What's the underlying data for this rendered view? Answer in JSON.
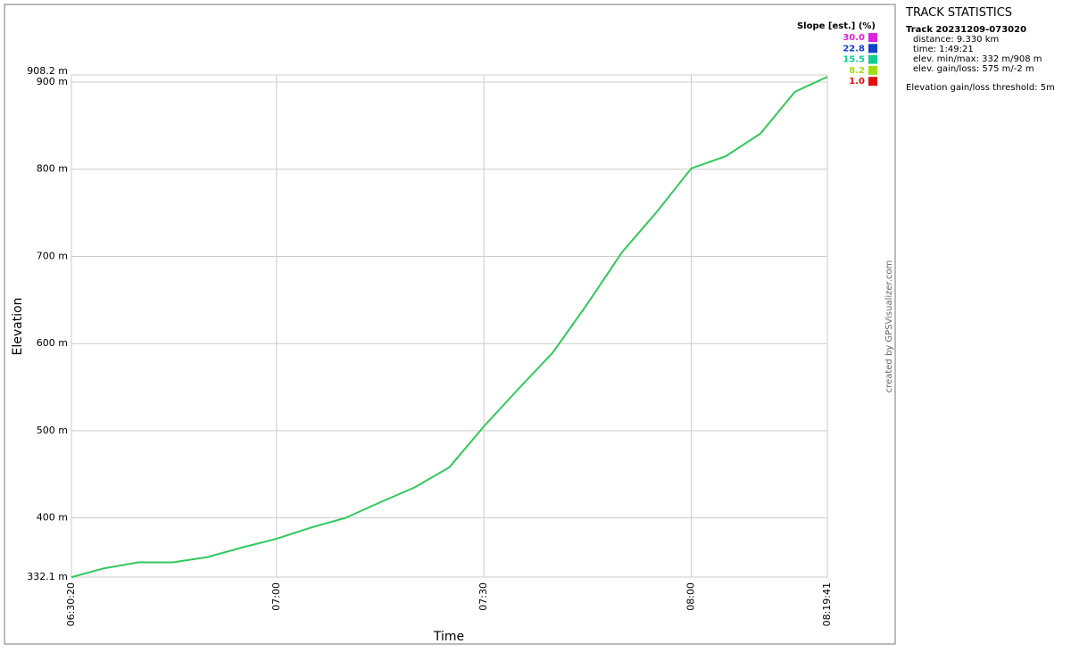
{
  "chart_data": {
    "type": "line",
    "x_label": "Time",
    "y_label": "Elevation",
    "x": [
      "06:30:20",
      "06:35",
      "06:40",
      "06:45",
      "06:50",
      "06:55",
      "07:00",
      "07:05",
      "07:10",
      "07:15",
      "07:20",
      "07:25",
      "07:30",
      "07:35",
      "07:40",
      "07:45",
      "07:50",
      "07:55",
      "08:00",
      "08:05",
      "08:10",
      "08:15",
      "08:19:41"
    ],
    "values": [
      332,
      342,
      349,
      349,
      355,
      366,
      376,
      389,
      400,
      418,
      435,
      458,
      505,
      548,
      590,
      646,
      705,
      751,
      801,
      815,
      841,
      889,
      906
    ],
    "color": "#2fc95a",
    "xlim": [
      "06:30:20",
      "08:19:41"
    ],
    "xticks": [
      "06:30:20",
      "07:00",
      "07:30",
      "08:00",
      "08:19:41"
    ],
    "ylim": [
      332.1,
      908.2
    ],
    "yticks": [
      {
        "value": 332.1,
        "label": "332.1 m"
      },
      {
        "value": 400,
        "label": "400 m"
      },
      {
        "value": 500,
        "label": "500 m"
      },
      {
        "value": 600,
        "label": "600 m"
      },
      {
        "value": 700,
        "label": "700 m"
      },
      {
        "value": 800,
        "label": "800 m"
      },
      {
        "value": 900,
        "label": "900 m"
      },
      {
        "value": 908.2,
        "label": "908.2 m"
      }
    ],
    "grid": true,
    "color_scale": {
      "title": "Slope [est.] (%)",
      "values": [
        30,
        22.8,
        15.5,
        8.2,
        1
      ],
      "value_labels": [
        "30.0",
        "22.8",
        "15.5",
        "8.2",
        "1.0"
      ],
      "colors": [
        "#e020e0",
        "#1040d0",
        "#10d090",
        "#a0e010",
        "#e01010"
      ]
    },
    "credit": "created by GPSVisualizer.com"
  },
  "stats": {
    "title": "TRACK STATISTICS",
    "track": "Track 20231209-073020",
    "lines": [
      "distance: 9.330 km",
      "time: 1:49:21",
      "elev. min/max: 332 m/908 m",
      "elev. gain/loss: 575 m/-2 m"
    ],
    "note": "Elevation gain/loss threshold: 5m"
  }
}
